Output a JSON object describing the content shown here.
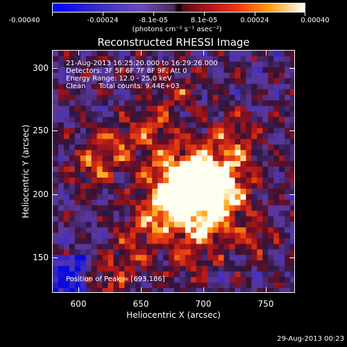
{
  "colorbar": {
    "ticks": [
      "-0.00040",
      "-0.00024",
      "-8.1e-05",
      "8.1e-05",
      "0.00024",
      "0.00040"
    ],
    "units": "(photons cm⁻² s⁻¹ asec⁻²)"
  },
  "title": "Reconstructed RHESSI Image",
  "info": {
    "time": "21-Aug-2013 16:25:20.000 to 16:29:26.000",
    "detectors": "Detectors: 3F 5F 6F 7F 8F 9F, Att 0",
    "energy": "Energy Range: 12.0 - 25.0 keV",
    "clean": "Clean      Total counts: 9.44E+03"
  },
  "peak": "Position of Peak = [693,186]",
  "axes": {
    "xlabel": "Heliocentric X (arcsec)",
    "ylabel": "Heliocentric Y (arcsec)",
    "xticks": [
      "600",
      "650",
      "700",
      "750"
    ],
    "yticks": [
      "300",
      "250",
      "200",
      "150"
    ]
  },
  "timestamp": "29-Aug-2013 00:23",
  "colors": {
    "negative": "#0000ff",
    "zero": "#000000",
    "positive_mid": "#f23b0e",
    "positive_max": "#ffffff"
  }
}
